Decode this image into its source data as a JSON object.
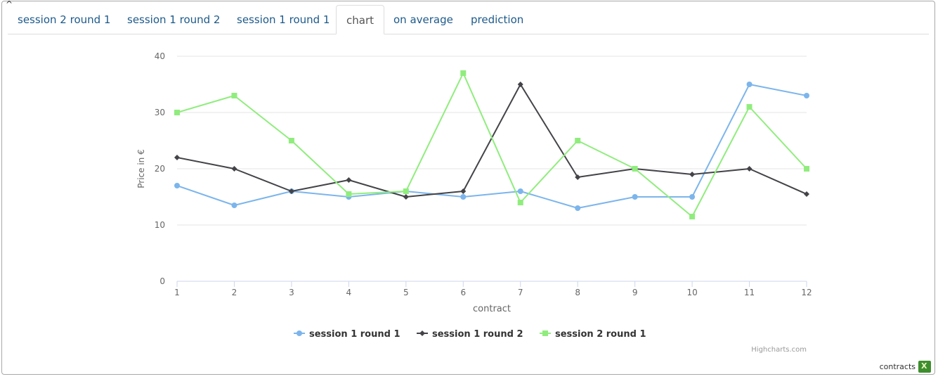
{
  "tabs": [
    {
      "label": "session 2 round 1"
    },
    {
      "label": "session 1 round 2"
    },
    {
      "label": "session 1 round 1"
    },
    {
      "label": "chart"
    },
    {
      "label": "on average"
    },
    {
      "label": "prediction"
    }
  ],
  "active_tab": "chart",
  "collapse_glyph": "^",
  "credits": "Highcharts.com",
  "footer": {
    "label": "contracts",
    "icon": "excel-icon"
  },
  "colors": {
    "series_1": "#7cb5ec",
    "series_2": "#434348",
    "series_3": "#90ed7d",
    "tab_link": "#1d5a8a"
  },
  "chart_data": {
    "type": "line",
    "xlabel": "contract",
    "ylabel": "Price in €",
    "ylim": [
      0,
      40
    ],
    "yticks": [
      0,
      10,
      20,
      30,
      40
    ],
    "categories": [
      "1",
      "2",
      "3",
      "4",
      "5",
      "6",
      "7",
      "8",
      "9",
      "10",
      "11",
      "12"
    ],
    "grid": true,
    "legend_position": "bottom-center",
    "series": [
      {
        "name": "session 1 round 1",
        "color": "#7cb5ec",
        "marker": "circle",
        "values": [
          17,
          13.5,
          16,
          15,
          16,
          15,
          16,
          13,
          15,
          15,
          35,
          33
        ]
      },
      {
        "name": "session 1 round 2",
        "color": "#434348",
        "marker": "diamond",
        "values": [
          22,
          20,
          16,
          18,
          15,
          16,
          35,
          18.5,
          20,
          19,
          20,
          15.5
        ]
      },
      {
        "name": "session 2 round 1",
        "color": "#90ed7d",
        "marker": "square",
        "values": [
          30,
          33,
          25,
          15.5,
          16,
          37,
          14,
          25,
          20,
          11.5,
          31,
          20
        ]
      }
    ]
  }
}
